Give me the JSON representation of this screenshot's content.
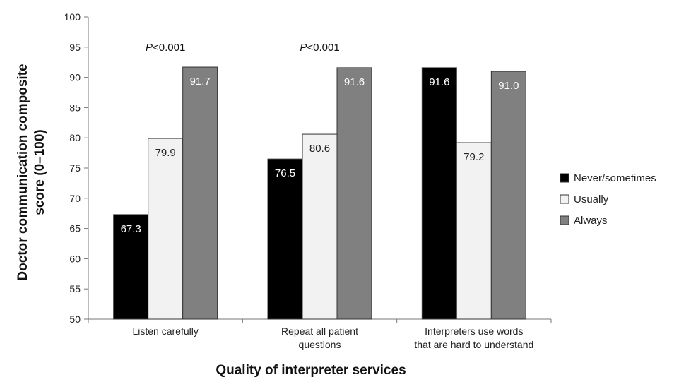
{
  "chart_data": {
    "type": "bar",
    "categories": [
      [
        "Listen carefully"
      ],
      [
        "Repeat all patient",
        "questions"
      ],
      [
        "Interpreters use words",
        "that are hard to understand"
      ]
    ],
    "series": [
      {
        "name": "Never/sometimes",
        "values": [
          67.3,
          76.5,
          91.6
        ],
        "color": "#000000",
        "label_color": "#ffffff"
      },
      {
        "name": "Usually",
        "values": [
          79.9,
          80.6,
          79.2
        ],
        "color": "#f2f2f2",
        "label_color": "#222222"
      },
      {
        "name": "Always",
        "values": [
          91.7,
          91.6,
          91.0
        ],
        "color": "#808080",
        "label_color": "#ffffff"
      }
    ],
    "value_labels": [
      [
        "67.3",
        "76.5",
        "91.6"
      ],
      [
        "79.9",
        "80.6",
        "79.2"
      ],
      [
        "91.7",
        "91.6",
        "91.0"
      ]
    ],
    "annotations": [
      {
        "category_index": 0,
        "italic": "P",
        "rest": "<0.001"
      },
      {
        "category_index": 1,
        "italic": "P",
        "rest": "<0.001"
      }
    ],
    "ylim": [
      50,
      100
    ],
    "yticks": [
      50,
      55,
      60,
      65,
      70,
      75,
      80,
      85,
      90,
      95,
      100
    ],
    "ylabel": [
      "Doctor communication composite",
      "score (0–100)"
    ],
    "xlabel": "Quality of interpreter services",
    "legend_position": "right",
    "grid": false
  }
}
